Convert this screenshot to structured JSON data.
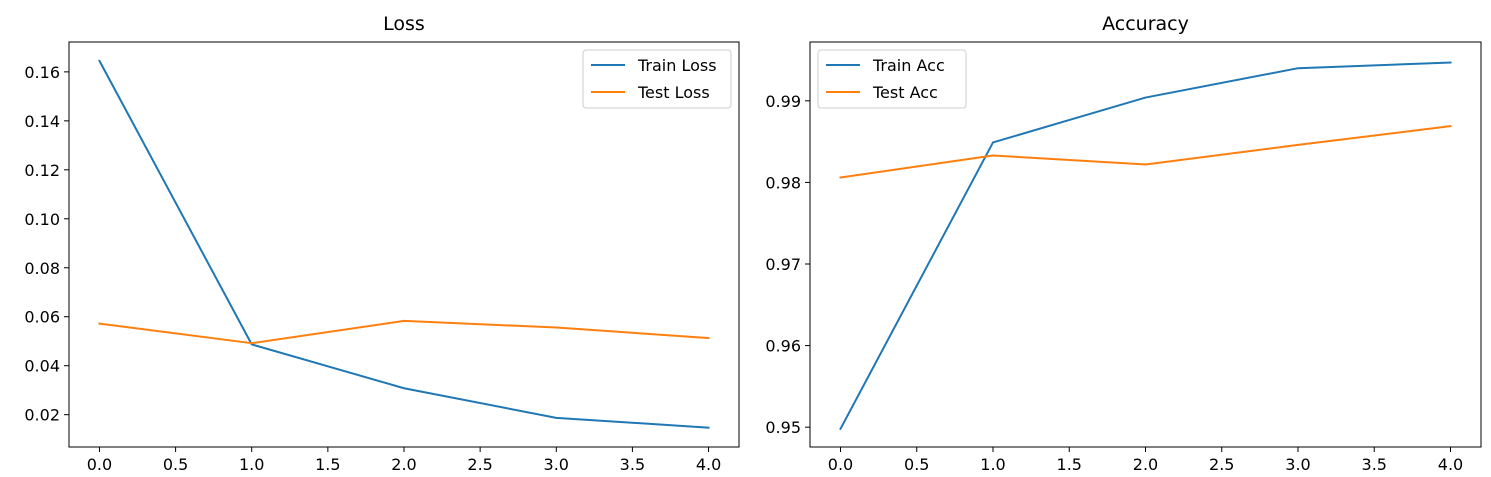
{
  "chart_data": [
    {
      "type": "line",
      "title": "Loss",
      "xlabel": "",
      "ylabel": "",
      "x": [
        0,
        1,
        2,
        3,
        4
      ],
      "xlim": [
        -0.2,
        4.2
      ],
      "ylim": [
        0.0068,
        0.1722
      ],
      "xticks": [
        "0.0",
        "0.5",
        "1.0",
        "1.5",
        "2.0",
        "2.5",
        "3.0",
        "3.5",
        "4.0"
      ],
      "yticks": [
        "0.02",
        "0.04",
        "0.06",
        "0.08",
        "0.10",
        "0.12",
        "0.14",
        "0.16"
      ],
      "grid": false,
      "legend_position": "top-right",
      "series": [
        {
          "name": "Train Loss",
          "color": "#1f77b4",
          "values": [
            0.1645,
            0.0487,
            0.0308,
            0.0187,
            0.0147
          ]
        },
        {
          "name": "Test Loss",
          "color": "#ff7f0e",
          "values": [
            0.0572,
            0.0492,
            0.0583,
            0.0556,
            0.0513
          ]
        }
      ]
    },
    {
      "type": "line",
      "title": "Accuracy",
      "xlabel": "",
      "ylabel": "",
      "x": [
        0,
        1,
        2,
        3,
        4
      ],
      "xlim": [
        -0.2,
        4.2
      ],
      "ylim": [
        0.94757,
        0.99721
      ],
      "xticks": [
        "0.0",
        "0.5",
        "1.0",
        "1.5",
        "2.0",
        "2.5",
        "3.0",
        "3.5",
        "4.0"
      ],
      "yticks": [
        "0.95",
        "0.96",
        "0.97",
        "0.98",
        "0.99"
      ],
      "grid": false,
      "legend_position": "top-left",
      "series": [
        {
          "name": "Train Acc",
          "color": "#1f77b4",
          "values": [
            0.9498,
            0.9849,
            0.9904,
            0.994,
            0.9947
          ]
        },
        {
          "name": "Test Acc",
          "color": "#ff7f0e",
          "values": [
            0.9806,
            0.9833,
            0.9822,
            0.9846,
            0.9869
          ]
        }
      ]
    }
  ]
}
